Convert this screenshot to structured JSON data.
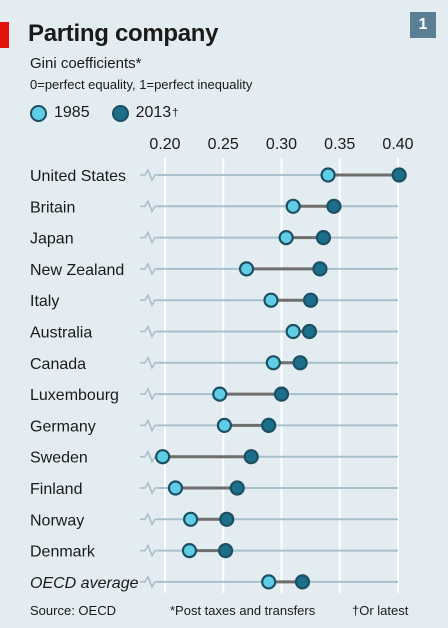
{
  "header": {
    "title": "Parting company",
    "subtitle": "Gini coefficients*",
    "subnote": "0=perfect equality, 1=perfect inequality",
    "chart_number": "1"
  },
  "footer": {
    "source": "Source: OECD",
    "note1": "*Post taxes and transfers",
    "note2": "†Or latest"
  },
  "colors": {
    "background": "#e3ecf1",
    "accent_red": "#e3120b",
    "dot_1985": "#5fcde6",
    "dot_2013": "#1b6f8a",
    "dot_outline": "#1d4f63",
    "connector": "#6e6e6e",
    "row_line": "#a8bfcc",
    "grid_line": "#ffffff"
  },
  "chart_data": {
    "type": "dot",
    "x_ticks": [
      "0.20",
      "0.25",
      "0.30",
      "0.35",
      "0.40"
    ],
    "x_tick_values": [
      0.2,
      0.25,
      0.3,
      0.35,
      0.4
    ],
    "xlim": [
      0.2,
      0.4
    ],
    "grid": true,
    "legend_position": "top-left",
    "legend": [
      {
        "label": "1985",
        "dagger": ""
      },
      {
        "label": "2013",
        "dagger": "†"
      }
    ],
    "categories": [
      "United States",
      "Britain",
      "Japan",
      "New Zealand",
      "Italy",
      "Australia",
      "Canada",
      "Luxembourg",
      "Germany",
      "Sweden",
      "Finland",
      "Norway",
      "Denmark",
      "OECD average"
    ],
    "italic_categories": [
      "OECD average"
    ],
    "series": [
      {
        "name": "1985",
        "values": [
          0.34,
          0.31,
          0.304,
          0.27,
          0.291,
          0.31,
          0.293,
          0.247,
          0.251,
          0.198,
          0.209,
          0.222,
          0.221,
          0.289
        ]
      },
      {
        "name": "2013",
        "values": [
          0.401,
          0.345,
          0.336,
          0.333,
          0.325,
          0.324,
          0.316,
          0.3,
          0.289,
          0.274,
          0.262,
          0.253,
          0.252,
          0.318
        ]
      }
    ]
  }
}
